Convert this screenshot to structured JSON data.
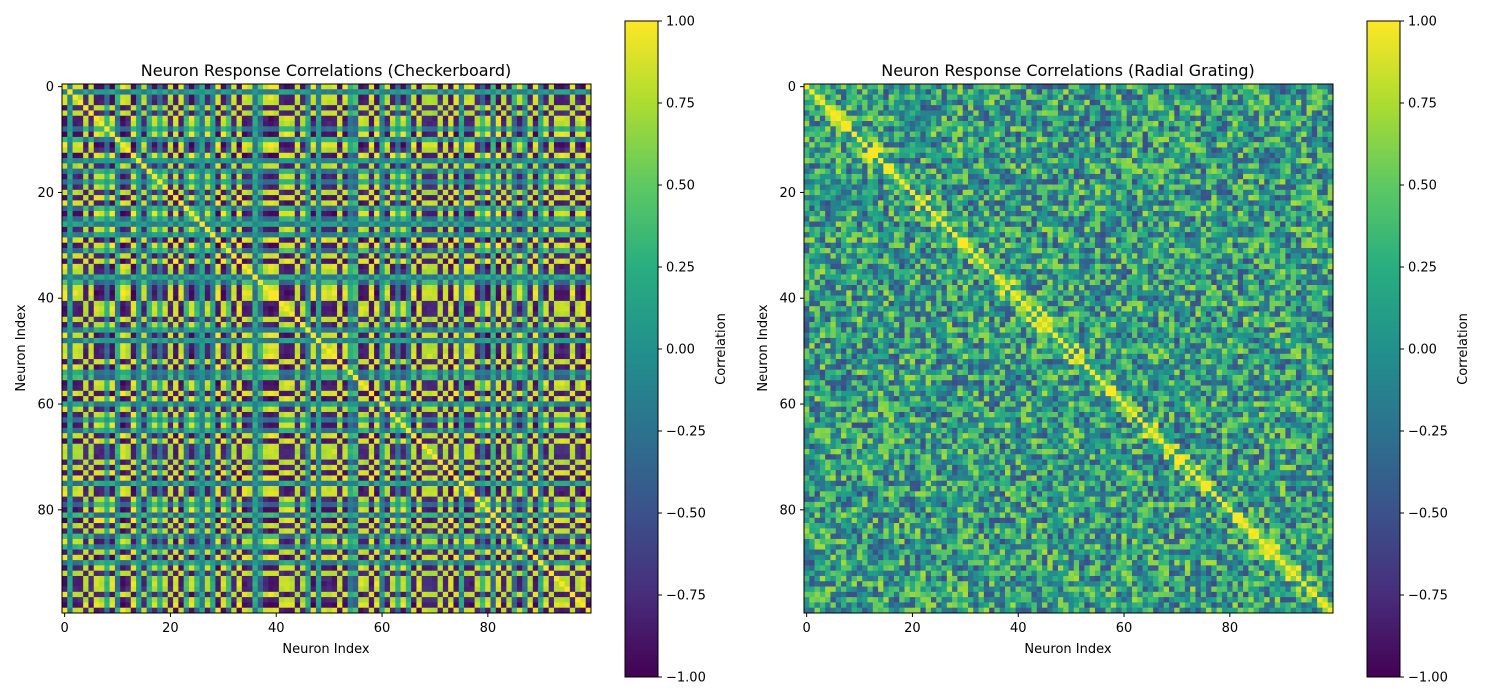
{
  "chart_data": [
    {
      "type": "heatmap",
      "title": "Neuron Response Correlations (Checkerboard)",
      "xlabel": "Neuron Index",
      "ylabel": "Neuron Index",
      "size": 100,
      "x_ticks": [
        0,
        20,
        40,
        60,
        80
      ],
      "y_ticks": [
        0,
        20,
        40,
        60,
        80
      ],
      "colorbar": {
        "label": "Correlation",
        "range": [
          -1.0,
          1.0
        ],
        "ticks": [
          "1.00",
          "0.75",
          "0.50",
          "0.25",
          "0.00",
          "−0.25",
          "−0.50",
          "−0.75",
          "−1.00"
        ],
        "colormap": "viridis"
      },
      "pattern": "checkerboard block structure, diagonal = 1.00"
    },
    {
      "type": "heatmap",
      "title": "Neuron Response Correlations (Radial Grating)",
      "xlabel": "Neuron Index",
      "ylabel": "Neuron Index",
      "size": 100,
      "x_ticks": [
        0,
        20,
        40,
        60,
        80
      ],
      "y_ticks": [
        0,
        20,
        40,
        60,
        80
      ],
      "colorbar": {
        "label": "Correlation",
        "range": [
          -1.0,
          1.0
        ],
        "ticks": [
          "1.00",
          "0.75",
          "0.50",
          "0.25",
          "0.00",
          "−0.25",
          "−0.50",
          "−0.75",
          "−1.00"
        ],
        "colormap": "viridis"
      },
      "pattern": "weaker mixed correlations, diagonal = 1.00"
    }
  ]
}
